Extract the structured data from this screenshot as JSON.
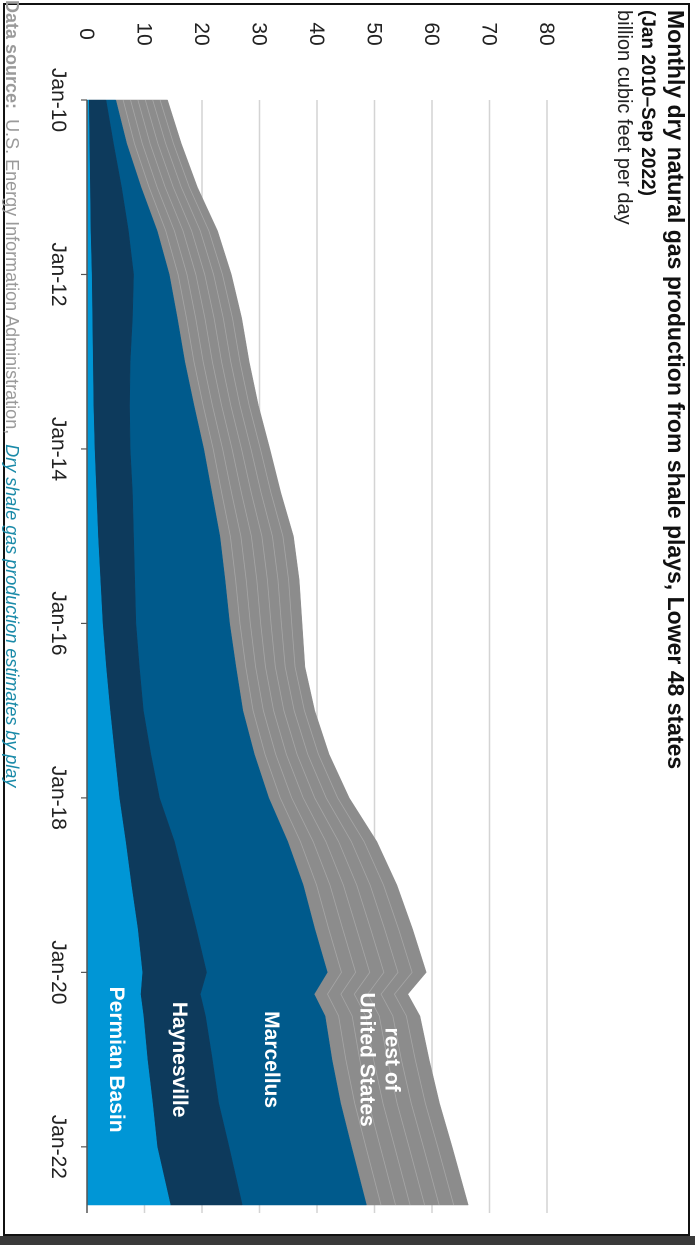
{
  "chart_data": {
    "type": "area",
    "title": "Monthly dry natural gas production from shale plays, Lower 48 states",
    "subtitle": "(Jan 2010–Sep 2022)",
    "units": "billion cubic feet per day",
    "source_label": "Data source:",
    "source_text": "U.S. Energy Information Administration,",
    "source_link": "Dry shale gas production estimates by play",
    "x_ticks": [
      "Jan-10",
      "Jan-12",
      "Jan-14",
      "Jan-16",
      "Jan-18",
      "Jan-20",
      "Jan-22"
    ],
    "y_ticks": [
      0,
      10,
      20,
      30,
      40,
      50,
      60,
      70,
      80
    ],
    "ylim": [
      0,
      80
    ],
    "x": [
      "2010-01",
      "2010-07",
      "2011-01",
      "2011-07",
      "2012-01",
      "2012-07",
      "2013-01",
      "2013-07",
      "2014-01",
      "2014-07",
      "2015-01",
      "2015-07",
      "2016-01",
      "2016-07",
      "2017-01",
      "2017-07",
      "2018-01",
      "2018-07",
      "2019-01",
      "2019-07",
      "2020-01",
      "2020-04",
      "2020-07",
      "2021-01",
      "2021-07",
      "2022-01",
      "2022-09"
    ],
    "series": [
      {
        "name": "Permian Basin",
        "color": "#0096d6",
        "values": [
          0.3,
          0.4,
          0.5,
          0.6,
          0.8,
          0.9,
          1.0,
          1.1,
          1.3,
          1.6,
          1.9,
          2.3,
          2.7,
          3.3,
          4.0,
          4.8,
          5.6,
          6.7,
          7.7,
          8.8,
          9.6,
          9.3,
          9.8,
          10.5,
          11.4,
          12.2,
          14.5
        ]
      },
      {
        "name": "Haynesville",
        "color": "#0d3a5c",
        "values": [
          3.0,
          4.2,
          5.5,
          6.6,
          7.3,
          7.0,
          6.5,
          6.3,
          6.2,
          6.3,
          6.2,
          6.0,
          5.8,
          5.8,
          5.8,
          6.3,
          7.0,
          8.5,
          9.4,
          10.2,
          11.2,
          10.4,
          10.8,
          11.3,
          11.5,
          12.5,
          12.5
        ]
      },
      {
        "name": "Marcellus",
        "color": "#005a8c",
        "values": [
          1.7,
          2.3,
          3.4,
          5.0,
          6.2,
          7.8,
          9.5,
          11.2,
          12.8,
          13.8,
          15.0,
          15.7,
          16.3,
          16.8,
          17.3,
          18.0,
          19.0,
          19.7,
          20.5,
          20.6,
          21.0,
          19.8,
          20.8,
          20.8,
          21.2,
          21.3,
          21.6
        ]
      },
      {
        "name": "rest of United States",
        "color": "#8c8c8c",
        "values": [
          9.0,
          9.5,
          9.8,
          10.5,
          10.8,
          11.2,
          11.2,
          11.2,
          11.5,
          12.0,
          12.8,
          12.9,
          12.6,
          12.0,
          12.5,
          13.0,
          14.0,
          15.5,
          16.3,
          17.0,
          17.2,
          16.3,
          16.5,
          16.9,
          17.2,
          17.5,
          17.7
        ]
      }
    ],
    "series_label_lines": {
      "rest of United States": [
        "rest of",
        "United States"
      ],
      "Marcellus": [
        "Marcellus"
      ],
      "Haynesville": [
        "Haynesville"
      ],
      "Permian Basin": [
        "Permian Basin"
      ]
    },
    "grid": true,
    "orientation": "rotated 90° clockwise"
  }
}
